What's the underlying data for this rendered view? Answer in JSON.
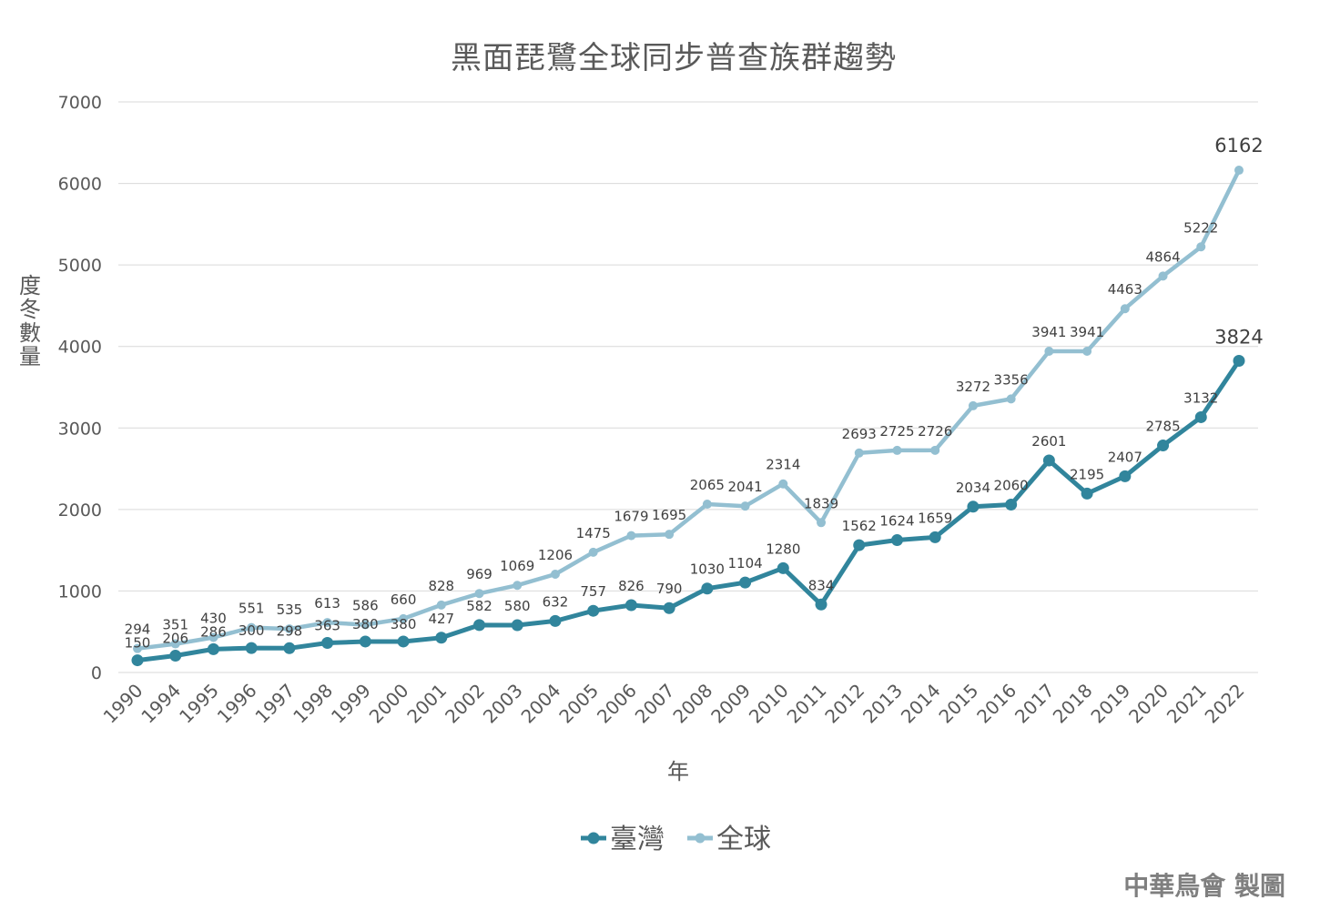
{
  "chart_data": {
    "type": "line",
    "title": "黑面琵鷺全球同步普查族群趨勢",
    "xlabel": "年",
    "ylabel": "度冬數量",
    "ylim": [
      0,
      7000
    ],
    "yticks": [
      0,
      1000,
      2000,
      3000,
      4000,
      5000,
      6000,
      7000
    ],
    "grid": true,
    "legend_position": "bottom",
    "categories": [
      "1990",
      "1994",
      "1995",
      "1996",
      "1997",
      "1998",
      "1999",
      "2000",
      "2001",
      "2002",
      "2003",
      "2004",
      "2005",
      "2006",
      "2007",
      "2008",
      "2009",
      "2010",
      "2011",
      "2012",
      "2013",
      "2014",
      "2015",
      "2016",
      "2017",
      "2018",
      "2019",
      "2020",
      "2021",
      "2022"
    ],
    "series": [
      {
        "name": "臺灣",
        "color": "#31859c",
        "values": [
          150,
          206,
          286,
          300,
          298,
          363,
          380,
          380,
          427,
          582,
          580,
          632,
          757,
          826,
          790,
          1030,
          1104,
          1280,
          834,
          1562,
          1624,
          1659,
          2034,
          2060,
          2601,
          2195,
          2407,
          2785,
          3132,
          3824
        ]
      },
      {
        "name": "全球",
        "color": "#93bfd1",
        "values": [
          294,
          351,
          430,
          551,
          535,
          613,
          586,
          660,
          828,
          969,
          1069,
          1206,
          1475,
          1679,
          1695,
          2065,
          2041,
          2314,
          1839,
          2693,
          2725,
          2726,
          3272,
          3356,
          3941,
          3941,
          4463,
          4864,
          5222,
          6162
        ]
      }
    ]
  },
  "credit": "中華鳥會 製圖"
}
